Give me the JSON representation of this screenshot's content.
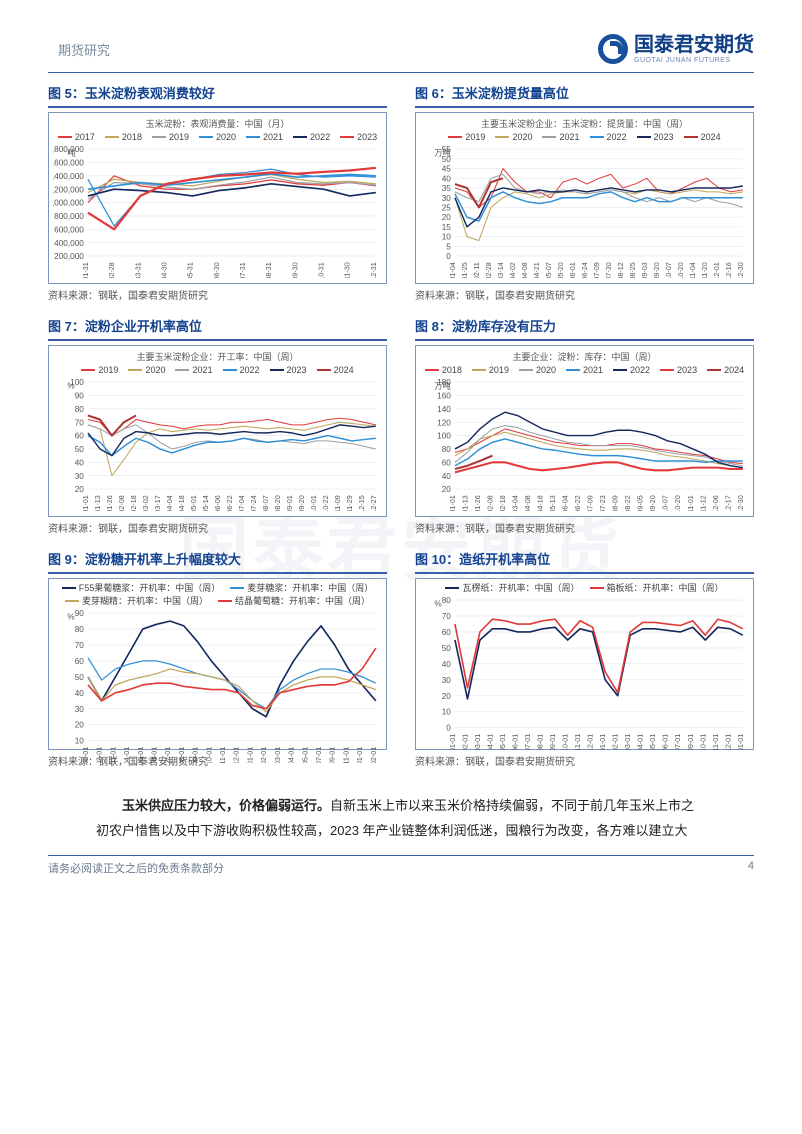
{
  "header": {
    "section": "期货研究"
  },
  "brand": {
    "cn": "国泰君安期货",
    "en": "GUOTAI JUNAN FUTURES"
  },
  "watermark": "国泰君安期货",
  "footer": {
    "disclaimer": "请务必阅读正文之后的免责条款部分",
    "page": "4"
  },
  "body": {
    "bold": "玉米供应压力较大，价格偏弱运行。",
    "rest": "自新玉米上市以来玉米价格持续偏弱，不同于前几年玉米上市之初农户惜售以及中下游收购积极性较高，2023 年产业链整体利润低迷，囤粮行为改变，各方难以建立大"
  },
  "source": "资料来源：钢联，国泰君安期货研究",
  "palette": {
    "c2017": "#e23a3a",
    "c2018": "#bfa65a",
    "c2019": "#e23a3a",
    "c2019b": "#bfa65a",
    "c2020": "#9aa0a6",
    "c2021": "#2d8fd5",
    "c2022": "#15295f",
    "c2023": "#e23a3a",
    "c2024": "#b03535",
    "grid": "#e2e6ed",
    "border": "#7d95bd",
    "title": "#13428e"
  },
  "charts": {
    "c5": {
      "title": "图 5：玉米淀粉表观消费较好",
      "type": "line",
      "unit_left": "吨",
      "caption": "玉米淀粉：表观消费量：中国（月）",
      "ylim": [
        200000,
        1800000
      ],
      "ystep": 200000,
      "xticks": [
        "01-31",
        "02-28",
        "03-31",
        "04-30",
        "05-31",
        "06-30",
        "07-31",
        "08-31",
        "09-30",
        "10-31",
        "11-30",
        "12-31"
      ],
      "series": [
        {
          "name": "2017",
          "color": "#e23a3a",
          "w": 1.2,
          "y": [
            1000000,
            1400000,
            1250000,
            1200000,
            1200000,
            1250000,
            1280000,
            1340000,
            1280000,
            1260000,
            1300000,
            1250000
          ]
        },
        {
          "name": "2018",
          "color": "#bfa65a",
          "w": 1.2,
          "y": [
            1150000,
            1350000,
            1300000,
            1280000,
            1250000,
            1320000,
            1380000,
            1420000,
            1350000,
            1300000,
            1320000,
            1280000
          ]
        },
        {
          "name": "2019",
          "color": "#9aa0a6",
          "w": 1.2,
          "y": [
            1050000,
            1300000,
            1280000,
            1230000,
            1200000,
            1260000,
            1310000,
            1380000,
            1300000,
            1280000,
            1300000,
            1260000
          ]
        },
        {
          "name": "2020",
          "color": "#2d8fd5",
          "w": 1.2,
          "y": [
            1350000,
            650000,
            1100000,
            1280000,
            1350000,
            1420000,
            1450000,
            1500000,
            1420000,
            1380000,
            1400000,
            1380000
          ]
        },
        {
          "name": "2021",
          "color": "#2d8fd5",
          "w": 1.6,
          "y": [
            1200000,
            1250000,
            1300000,
            1260000,
            1300000,
            1340000,
            1380000,
            1430000,
            1380000,
            1400000,
            1420000,
            1400000
          ]
        },
        {
          "name": "2022",
          "color": "#15295f",
          "w": 1.6,
          "y": [
            1100000,
            1200000,
            1180000,
            1150000,
            1100000,
            1180000,
            1220000,
            1280000,
            1240000,
            1200000,
            1100000,
            1150000
          ]
        },
        {
          "name": "2023",
          "color": "#e23a3a",
          "w": 2.2,
          "y": [
            850000,
            600000,
            1100000,
            1280000,
            1350000,
            1400000,
            1420000,
            1450000,
            1430000,
            1460000,
            1480000,
            1520000
          ]
        }
      ]
    },
    "c6": {
      "title": "图 6：玉米淀粉提货量高位",
      "type": "line",
      "unit_left": "万吨",
      "caption": "主要玉米淀粉企业：玉米淀粉：提货量：中国（周）",
      "ylim": [
        0,
        55
      ],
      "ystep": 5,
      "xticks": [
        "01-04",
        "01-25",
        "02-11",
        "02-28",
        "03-14",
        "04-02",
        "04-08",
        "04-21",
        "05-07",
        "05-20",
        "06-01",
        "06-24",
        "07-09",
        "07-30",
        "08-12",
        "08-25",
        "09-03",
        "09-20",
        "10-07",
        "10-20",
        "11-04",
        "11-20",
        "12-01",
        "12-16",
        "12-30"
      ],
      "series": [
        {
          "name": "2019",
          "color": "#e23a3a",
          "w": 1,
          "y": [
            35,
            33,
            25,
            30,
            45,
            38,
            33,
            33,
            30,
            38,
            40,
            37,
            40,
            42,
            35,
            37,
            40,
            33,
            32,
            35,
            38,
            40,
            35,
            33,
            34
          ]
        },
        {
          "name": "2020",
          "color": "#bfa65a",
          "w": 1,
          "y": [
            30,
            10,
            8,
            25,
            30,
            33,
            32,
            30,
            32,
            33,
            33,
            32,
            33,
            34,
            33,
            32,
            34,
            33,
            32,
            33,
            34,
            33,
            33,
            32,
            33
          ]
        },
        {
          "name": "2021",
          "color": "#9aa0a6",
          "w": 1,
          "y": [
            33,
            30,
            28,
            40,
            42,
            35,
            33,
            32,
            33,
            34,
            33,
            32,
            33,
            34,
            33,
            30,
            28,
            30,
            28,
            30,
            28,
            30,
            28,
            27,
            25
          ]
        },
        {
          "name": "2022",
          "color": "#2d8fd5",
          "w": 1.4,
          "y": [
            32,
            20,
            18,
            30,
            33,
            30,
            28,
            27,
            28,
            30,
            30,
            30,
            32,
            33,
            30,
            28,
            30,
            28,
            28,
            30,
            30,
            30,
            30,
            30,
            30
          ]
        },
        {
          "name": "2023",
          "color": "#15295f",
          "w": 1.4,
          "y": [
            30,
            15,
            20,
            33,
            35,
            34,
            33,
            34,
            33,
            33,
            34,
            33,
            34,
            35,
            34,
            33,
            34,
            34,
            33,
            34,
            35,
            35,
            35,
            35,
            36
          ]
        },
        {
          "name": "2024",
          "color": "#b03535",
          "w": 2,
          "y": [
            37,
            35,
            25,
            38,
            40
          ]
        }
      ]
    },
    "c7": {
      "title": "图 7：淀粉企业开机率高位",
      "type": "line",
      "unit_left": "%",
      "caption": "主要玉米淀粉企业：开工率：中国（周）",
      "ylim": [
        20,
        100
      ],
      "ystep": 10,
      "xticks": [
        "01-01",
        "01-13",
        "01-26",
        "02-08",
        "02-18",
        "03-02",
        "03-17",
        "04-04",
        "04-18",
        "05-01",
        "05-14",
        "06-06",
        "06-22",
        "07-04",
        "07-24",
        "08-07",
        "08-20",
        "09-01",
        "09-20",
        "10-01",
        "10-22",
        "11-09",
        "11-29",
        "12-15",
        "12-27"
      ],
      "series": [
        {
          "name": "2019",
          "color": "#e23a3a",
          "w": 1,
          "y": [
            72,
            70,
            60,
            65,
            72,
            70,
            68,
            67,
            65,
            67,
            68,
            68,
            70,
            70,
            71,
            72,
            70,
            68,
            68,
            70,
            72,
            73,
            72,
            70,
            68
          ]
        },
        {
          "name": "2020",
          "color": "#bfa65a",
          "w": 1,
          "y": [
            68,
            65,
            30,
            42,
            55,
            62,
            65,
            63,
            64,
            65,
            64,
            65,
            66,
            67,
            66,
            65,
            66,
            65,
            64,
            66,
            68,
            70,
            69,
            68,
            67
          ]
        },
        {
          "name": "2021",
          "color": "#9aa0a6",
          "w": 1,
          "y": [
            68,
            65,
            60,
            65,
            68,
            62,
            55,
            50,
            52,
            55,
            56,
            55,
            56,
            58,
            57,
            55,
            56,
            55,
            54,
            56,
            56,
            55,
            54,
            52,
            50
          ]
        },
        {
          "name": "2022",
          "color": "#2d8fd5",
          "w": 1.4,
          "y": [
            60,
            55,
            45,
            52,
            58,
            55,
            50,
            47,
            50,
            53,
            55,
            55,
            56,
            58,
            56,
            55,
            56,
            57,
            56,
            58,
            60,
            58,
            56,
            57,
            58
          ]
        },
        {
          "name": "2023",
          "color": "#15295f",
          "w": 1.4,
          "y": [
            62,
            50,
            45,
            58,
            63,
            62,
            60,
            60,
            61,
            62,
            62,
            61,
            62,
            63,
            62,
            62,
            63,
            62,
            60,
            62,
            65,
            68,
            67,
            66,
            67
          ]
        },
        {
          "name": "2024",
          "color": "#b03535",
          "w": 2,
          "y": [
            75,
            72,
            60,
            70,
            75
          ]
        }
      ]
    },
    "c8": {
      "title": "图 8：淀粉库存没有压力",
      "type": "line",
      "unit_left": "万吨",
      "caption": "主要企业：淀粉：库存：中国（周）",
      "ylim": [
        20,
        180
      ],
      "ystep": 20,
      "xticks": [
        "01-01",
        "01-13",
        "01-26",
        "02-08",
        "02-18",
        "03-04",
        "04-08",
        "04-18",
        "05-13",
        "06-04",
        "06-22",
        "07-09",
        "07-23",
        "08-09",
        "08-22",
        "09-05",
        "09-20",
        "10-07",
        "10-20",
        "11-01",
        "11-12",
        "12-06",
        "12-17",
        "12-30"
      ],
      "series": [
        {
          "name": "2018",
          "color": "#e23a3a",
          "w": 1,
          "y": [
            75,
            80,
            90,
            100,
            110,
            105,
            100,
            95,
            90,
            88,
            85,
            85,
            85,
            88,
            88,
            85,
            80,
            78,
            75,
            72,
            70,
            65,
            60,
            58
          ]
        },
        {
          "name": "2019",
          "color": "#bfa65a",
          "w": 1,
          "y": [
            70,
            80,
            95,
            100,
            105,
            100,
            95,
            90,
            85,
            82,
            80,
            78,
            78,
            80,
            80,
            78,
            75,
            70,
            68,
            65,
            62,
            58,
            55,
            52
          ]
        },
        {
          "name": "2020",
          "color": "#9aa0a6",
          "w": 1,
          "y": [
            60,
            75,
            95,
            110,
            115,
            112,
            105,
            100,
            95,
            90,
            88,
            85,
            85,
            85,
            85,
            82,
            78,
            75,
            72,
            70,
            68,
            62,
            58,
            55
          ]
        },
        {
          "name": "2021",
          "color": "#2d8fd5",
          "w": 1.4,
          "y": [
            55,
            65,
            80,
            90,
            95,
            90,
            85,
            80,
            78,
            75,
            72,
            70,
            70,
            70,
            68,
            65,
            62,
            62,
            62,
            62,
            60,
            62,
            62,
            62
          ]
        },
        {
          "name": "2022",
          "color": "#15295f",
          "w": 1.4,
          "y": [
            80,
            90,
            110,
            125,
            135,
            130,
            120,
            110,
            105,
            100,
            100,
            100,
            105,
            108,
            108,
            105,
            100,
            92,
            88,
            80,
            72,
            60,
            55,
            52
          ]
        },
        {
          "name": "2023",
          "color": "#e23a3a",
          "w": 2,
          "y": [
            45,
            50,
            55,
            60,
            60,
            55,
            50,
            48,
            50,
            52,
            55,
            58,
            60,
            60,
            55,
            50,
            48,
            48,
            50,
            52,
            52,
            52,
            50,
            50
          ]
        },
        {
          "name": "2024",
          "color": "#b03535",
          "w": 2,
          "y": [
            50,
            55,
            62,
            70
          ]
        }
      ]
    },
    "c9": {
      "title": "图 9：淀粉糖开机率上升幅度较大",
      "type": "line",
      "unit_left": "%",
      "caption": "",
      "ylim": [
        10,
        90
      ],
      "ystep": 10,
      "xticks": [
        "2022-01-01",
        "2022-02-01",
        "2022-03-01",
        "2022-04-01",
        "2022-05-01",
        "2022-06-01",
        "2022-07-01",
        "2022-08-01",
        "2022-09-01",
        "2022-10-01",
        "2022-11-01",
        "2022-12-01",
        "2023-01-01",
        "2023-02-01",
        "2023-03-01",
        "2023-04-01",
        "2023-05-01",
        "2023-07-01",
        "2023-09-01",
        "2023-11-01",
        "2024-01-01",
        "2024-02-01"
      ],
      "series": [
        {
          "name": "F55果葡糖浆：开机率：中国（周）",
          "color": "#15295f",
          "w": 1.6,
          "y": [
            50,
            35,
            50,
            65,
            80,
            83,
            85,
            82,
            72,
            60,
            50,
            40,
            30,
            25,
            45,
            60,
            72,
            82,
            70,
            55,
            45,
            35
          ]
        },
        {
          "name": "麦芽糖浆：开机率：中国（周）",
          "color": "#2d8fd5",
          "w": 1.2,
          "y": [
            62,
            48,
            55,
            58,
            60,
            60,
            58,
            55,
            52,
            50,
            48,
            42,
            35,
            30,
            42,
            48,
            52,
            55,
            55,
            53,
            50,
            46
          ]
        },
        {
          "name": "麦芽糊精：开机率：中国（周）",
          "color": "#bfa65a",
          "w": 1.2,
          "y": [
            50,
            35,
            45,
            48,
            50,
            52,
            55,
            53,
            52,
            50,
            48,
            44,
            35,
            28,
            40,
            45,
            48,
            50,
            50,
            48,
            45,
            42
          ]
        },
        {
          "name": "结晶葡萄糖：开机率：中国（周）",
          "color": "#e23a3a",
          "w": 1.6,
          "y": [
            45,
            35,
            40,
            42,
            45,
            46,
            46,
            44,
            43,
            42,
            42,
            40,
            32,
            30,
            40,
            42,
            44,
            45,
            45,
            47,
            55,
            68
          ]
        }
      ]
    },
    "c10": {
      "title": "图 10：造纸开机率高位",
      "type": "line",
      "unit_left": "%",
      "caption": "",
      "ylim": [
        0,
        80
      ],
      "ystep": 10,
      "xticks": [
        "2022-01-01",
        "2022-02-01",
        "2022-03-01",
        "2022-04-01",
        "2022-05-01",
        "2022-06-01",
        "2022-07-01",
        "2022-08-01",
        "2022-09-01",
        "2022-10-01",
        "2022-11-01",
        "2022-12-01",
        "2023-01-01",
        "2023-02-01",
        "2023-03-01",
        "2023-04-01",
        "2023-05-01",
        "2023-06-01",
        "2023-07-01",
        "2023-09-01",
        "2023-10-01",
        "2023-11-01",
        "2023-12-01",
        "2024-01-01"
      ],
      "series": [
        {
          "name": "瓦楞纸：开机率：中国（周）",
          "color": "#15295f",
          "w": 1.6,
          "y": [
            55,
            18,
            55,
            62,
            62,
            60,
            60,
            62,
            63,
            55,
            62,
            60,
            30,
            20,
            58,
            62,
            62,
            61,
            60,
            63,
            55,
            63,
            62,
            58
          ]
        },
        {
          "name": "箱板纸：开机率：中国（周）",
          "color": "#e23a3a",
          "w": 1.6,
          "y": [
            65,
            25,
            60,
            68,
            67,
            65,
            65,
            67,
            68,
            58,
            67,
            63,
            35,
            22,
            60,
            66,
            66,
            65,
            64,
            67,
            58,
            68,
            66,
            62
          ]
        }
      ]
    }
  }
}
